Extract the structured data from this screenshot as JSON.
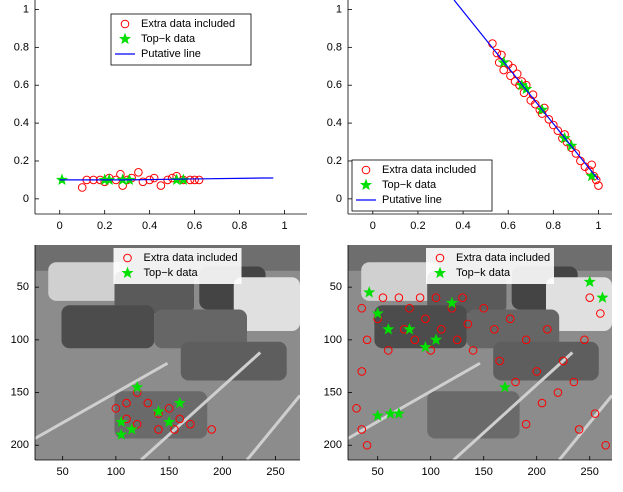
{
  "chart_data": [
    {
      "type": "scatter",
      "legend": "upper center",
      "xlim": [
        -0.11,
        1.1
      ],
      "ylim": [
        -0.08,
        1.05
      ],
      "xticks": [
        0,
        0.2,
        0.4,
        0.6,
        0.8,
        1
      ],
      "yticks": [
        0,
        0.2,
        0.4,
        0.6,
        0.8,
        1
      ],
      "series": [
        {
          "name": "Extra data included",
          "style": "circle",
          "color": "#ff0000",
          "x": [
            0.1,
            0.12,
            0.15,
            0.18,
            0.2,
            0.22,
            0.25,
            0.27,
            0.28,
            0.3,
            0.32,
            0.35,
            0.37,
            0.4,
            0.42,
            0.45,
            0.48,
            0.5,
            0.52,
            0.55,
            0.58,
            0.6,
            0.62
          ],
          "values": [
            0.06,
            0.1,
            0.1,
            0.1,
            0.09,
            0.11,
            0.1,
            0.13,
            0.07,
            0.1,
            0.11,
            0.14,
            0.09,
            0.1,
            0.11,
            0.07,
            0.1,
            0.11,
            0.12,
            0.1,
            0.1,
            0.1,
            0.1
          ]
        },
        {
          "name": "Top−k data",
          "style": "star",
          "color": "#00e000",
          "x": [
            0.01,
            0.2,
            0.22,
            0.28,
            0.31,
            0.52,
            0.55
          ],
          "values": [
            0.1,
            0.1,
            0.1,
            0.1,
            0.1,
            0.1,
            0.1
          ]
        },
        {
          "name": "Putative line",
          "style": "line",
          "color": "#0000ff",
          "x": [
            0,
            0.3,
            0.6,
            0.9,
            0.95
          ],
          "values": [
            0.1,
            0.1,
            0.105,
            0.11,
            0.11
          ]
        }
      ]
    },
    {
      "type": "scatter",
      "legend": "lower left",
      "xlim": [
        -0.11,
        1.06
      ],
      "ylim": [
        -0.08,
        1.05
      ],
      "xticks": [
        0,
        0.2,
        0.4,
        0.6,
        0.8,
        1
      ],
      "yticks": [
        0,
        0.2,
        0.4,
        0.6,
        0.8,
        1
      ],
      "series": [
        {
          "name": "Extra data included",
          "style": "circle",
          "color": "#ff0000",
          "x": [
            0.53,
            0.55,
            0.56,
            0.57,
            0.58,
            0.6,
            0.61,
            0.62,
            0.63,
            0.64,
            0.65,
            0.66,
            0.67,
            0.68,
            0.7,
            0.71,
            0.72,
            0.74,
            0.75,
            0.76,
            0.78,
            0.8,
            0.82,
            0.84,
            0.85,
            0.86,
            0.88,
            0.9,
            0.92,
            0.94,
            0.96,
            0.98,
            1.0,
            0.99,
            0.97
          ],
          "values": [
            0.82,
            0.77,
            0.72,
            0.76,
            0.68,
            0.71,
            0.65,
            0.69,
            0.62,
            0.66,
            0.6,
            0.62,
            0.56,
            0.6,
            0.52,
            0.55,
            0.5,
            0.47,
            0.45,
            0.48,
            0.42,
            0.39,
            0.36,
            0.32,
            0.34,
            0.3,
            0.27,
            0.24,
            0.2,
            0.17,
            0.15,
            0.12,
            0.07,
            0.1,
            0.18
          ]
        },
        {
          "name": "Top−k data",
          "style": "star",
          "color": "#00e000",
          "x": [
            0.58,
            0.66,
            0.68,
            0.75,
            0.85,
            0.88,
            0.97
          ],
          "values": [
            0.72,
            0.6,
            0.58,
            0.47,
            0.32,
            0.28,
            0.12
          ]
        },
        {
          "name": "Putative line",
          "style": "line",
          "color": "#0000ff",
          "x": [
            0.36,
            1.0
          ],
          "values": [
            1.05,
            0.1
          ]
        }
      ]
    },
    {
      "type": "image",
      "legend": "upper center",
      "y_reversed": true,
      "xlim": [
        24,
        273
      ],
      "ylim": [
        10,
        214
      ],
      "xticks": [
        50,
        100,
        150,
        200,
        250
      ],
      "yticks": [
        50,
        100,
        150,
        200
      ],
      "series": [
        {
          "name": "Extra data included",
          "style": "circle",
          "color": "#ff0000",
          "x": [
            100,
            110,
            120,
            130,
            140,
            150,
            160,
            155,
            170,
            190,
            140,
            120,
            110
          ],
          "values": [
            165,
            160,
            150,
            160,
            170,
            165,
            175,
            185,
            180,
            185,
            185,
            180,
            175
          ]
        },
        {
          "name": "Top−k data",
          "style": "star",
          "color": "#00e000",
          "x": [
            105,
            115,
            120,
            140,
            150,
            160,
            105
          ],
          "values": [
            178,
            185,
            145,
            168,
            178,
            160,
            190
          ]
        }
      ]
    },
    {
      "type": "image",
      "legend": "upper center",
      "y_reversed": true,
      "xlim": [
        22,
        271
      ],
      "ylim": [
        10,
        214
      ],
      "xticks": [
        50,
        100,
        150,
        200,
        250
      ],
      "yticks": [
        50,
        100,
        150,
        200
      ],
      "series": [
        {
          "name": "Extra data included",
          "style": "circle",
          "color": "#ff0000",
          "x": [
            35,
            40,
            35,
            30,
            35,
            40,
            50,
            55,
            60,
            70,
            75,
            80,
            85,
            90,
            95,
            100,
            105,
            110,
            120,
            125,
            130,
            135,
            140,
            150,
            160,
            165,
            175,
            180,
            190,
            200,
            205,
            210,
            220,
            225,
            235,
            245,
            250,
            260,
            255,
            265,
            240,
            190
          ],
          "values": [
            70,
            100,
            130,
            165,
            185,
            200,
            80,
            60,
            110,
            60,
            90,
            70,
            100,
            60,
            80,
            110,
            60,
            90,
            70,
            100,
            60,
            85,
            110,
            70,
            90,
            120,
            80,
            140,
            100,
            130,
            160,
            90,
            150,
            120,
            140,
            100,
            60,
            75,
            170,
            200,
            185,
            180
          ]
        },
        {
          "name": "Top−k data",
          "style": "star",
          "color": "#00e000",
          "x": [
            42,
            50,
            60,
            80,
            95,
            105,
            120,
            170,
            250,
            262,
            50,
            62,
            70
          ],
          "values": [
            55,
            75,
            90,
            90,
            107,
            100,
            65,
            145,
            45,
            60,
            172,
            170,
            170
          ]
        }
      ]
    }
  ]
}
